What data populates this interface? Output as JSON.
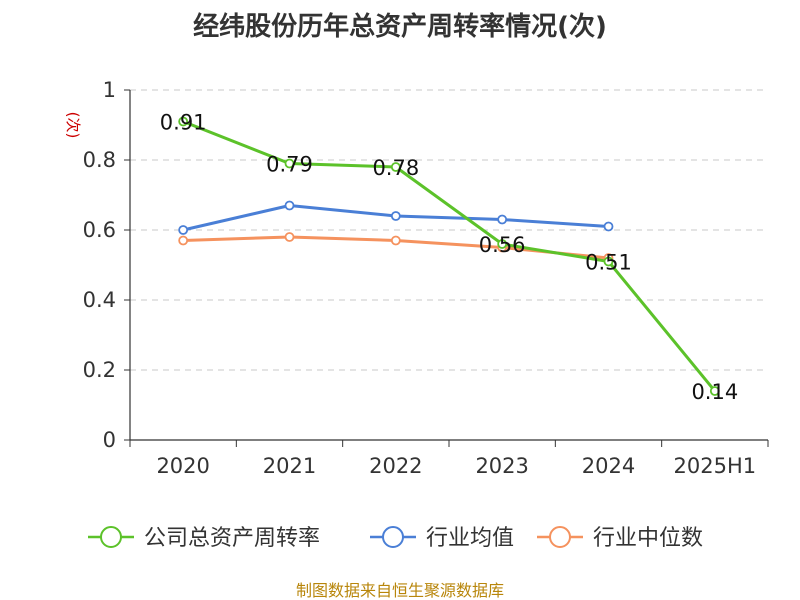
{
  "chart_data": {
    "type": "line",
    "title": "经纬股份历年总资产周转率情况(次)",
    "ylabel": "(次)",
    "categories": [
      "2020",
      "2021",
      "2022",
      "2023",
      "2024",
      "2025H1"
    ],
    "yticks": [
      "0",
      "0.2",
      "0.4",
      "0.6",
      "0.8",
      "1"
    ],
    "ylim": [
      0,
      1
    ],
    "grid": true,
    "legend_position": "bottom",
    "series": [
      {
        "name": "公司总资产周转率",
        "color": "#5cc22a",
        "values": [
          0.91,
          0.79,
          0.78,
          0.56,
          0.51,
          0.14
        ],
        "labels": [
          "0.91",
          "0.79",
          "0.78",
          "0.56",
          "0.51",
          "0.14"
        ]
      },
      {
        "name": "行业均值",
        "color": "#4a7fd6",
        "values": [
          0.6,
          0.67,
          0.64,
          0.63,
          0.61,
          null
        ]
      },
      {
        "name": "行业中位数",
        "color": "#f5925e",
        "values": [
          0.57,
          0.58,
          0.57,
          0.55,
          0.52,
          null
        ]
      }
    ]
  },
  "footer": {
    "source": "制图数据来自恒生聚源数据库"
  }
}
